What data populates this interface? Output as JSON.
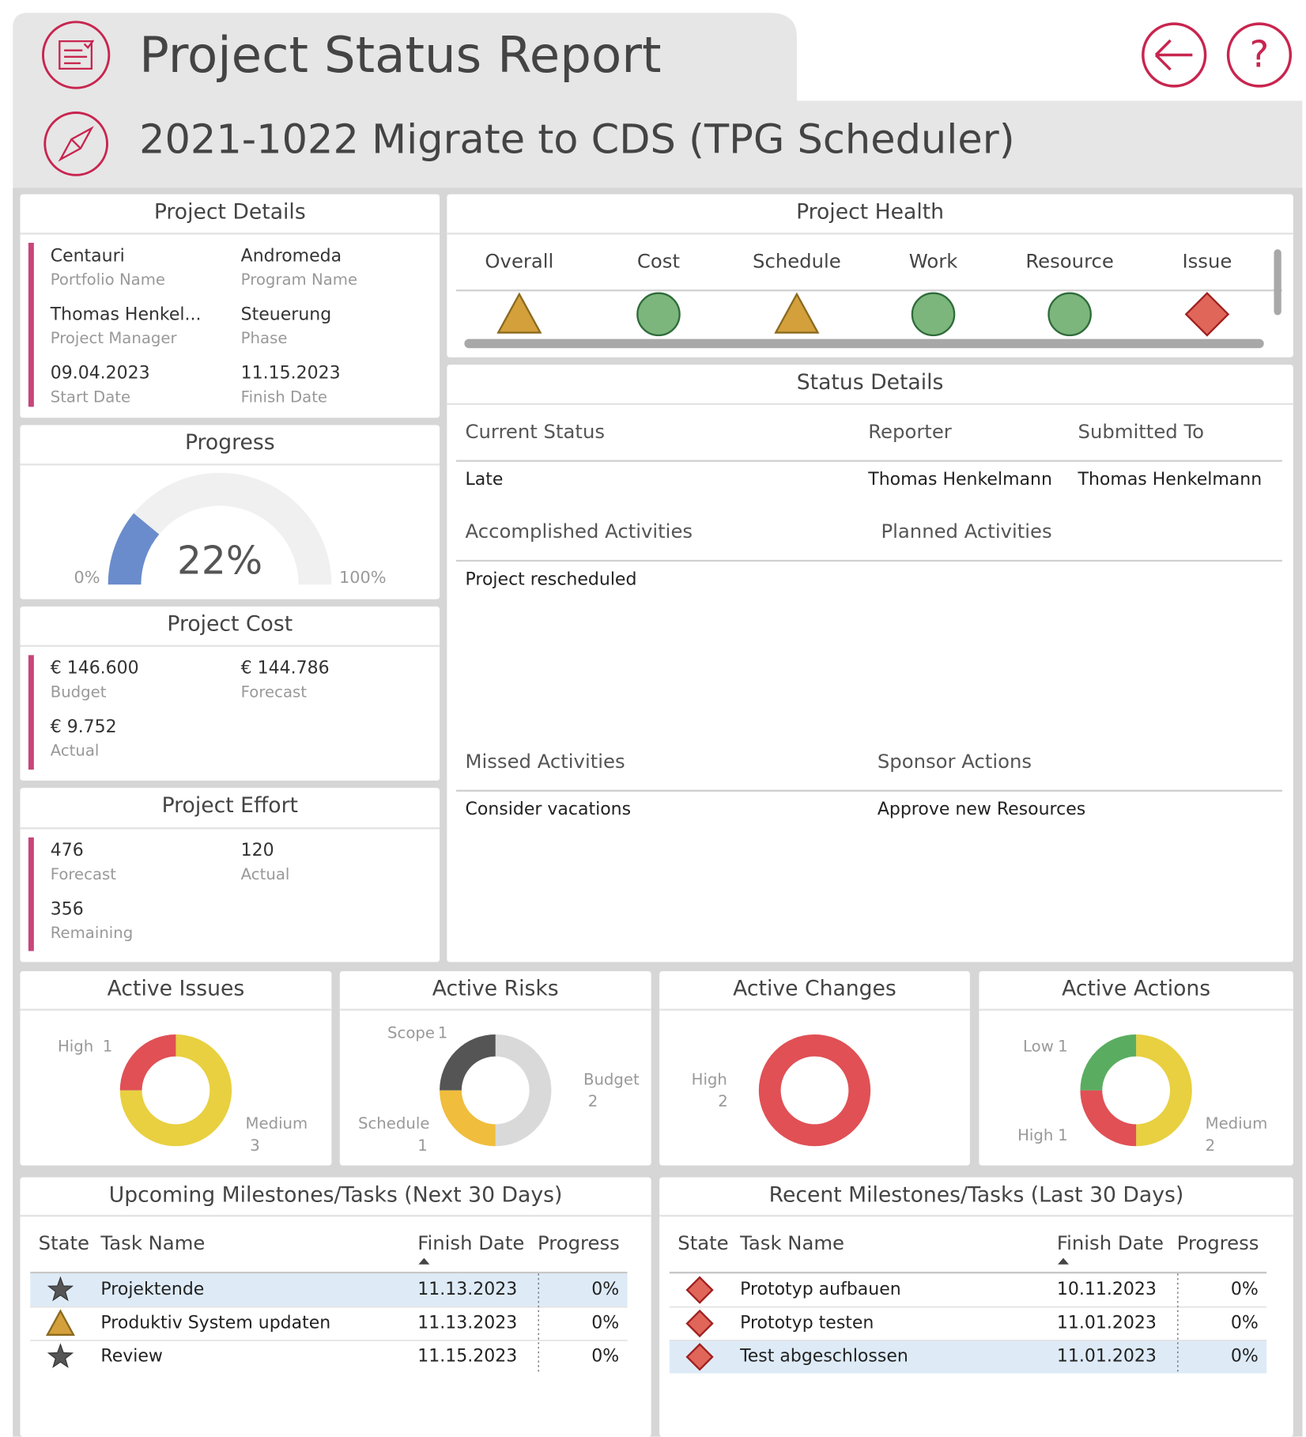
{
  "header": {
    "title": "Project Status Report",
    "project": "2021-1022 Migrate to CDS (TPG Scheduler)"
  },
  "project_details": {
    "title": "Project Details",
    "fields": [
      {
        "value": "Centauri",
        "label": "Portfolio Name"
      },
      {
        "value": "Andromeda",
        "label": "Program Name"
      },
      {
        "value": "Thomas Henkel...",
        "label": "Project Manager"
      },
      {
        "value": "Steuerung",
        "label": "Phase"
      },
      {
        "value": "09.04.2023",
        "label": "Start Date"
      },
      {
        "value": "11.15.2023",
        "label": "Finish Date"
      }
    ]
  },
  "progress": {
    "title": "Progress",
    "value": 22,
    "value_label": "22%",
    "ticks": [
      {
        "value": 0,
        "label": "0%"
      },
      {
        "value": 100,
        "label": "100%"
      }
    ],
    "color": "#6a8ccc"
  },
  "project_cost": {
    "title": "Project Cost",
    "fields": [
      {
        "value": "€ 146.600",
        "label": "Budget"
      },
      {
        "value": "€ 144.786",
        "label": "Forecast"
      },
      {
        "value": "€ 9.752",
        "label": "Actual"
      }
    ]
  },
  "project_effort": {
    "title": "Project Effort",
    "fields": [
      {
        "value": 476,
        "label": "Forecast"
      },
      {
        "value": 120,
        "label": "Actual"
      },
      {
        "value": 356,
        "label": "Remaining"
      }
    ]
  },
  "project_health": {
    "title": "Project Health",
    "indicators": [
      {
        "label": "Overall",
        "shape": "triangle"
      },
      {
        "label": "Cost",
        "shape": "circle"
      },
      {
        "label": "Schedule",
        "shape": "triangle"
      },
      {
        "label": "Work",
        "shape": "circle"
      },
      {
        "label": "Resource",
        "shape": "circle"
      },
      {
        "label": "Issue",
        "shape": "diamond"
      }
    ]
  },
  "status_details": {
    "title": "Status Details",
    "sections": [
      {
        "columns": [
          {
            "heading": "Current Status",
            "text": "Late"
          },
          {
            "heading": "Reporter",
            "text": "Thomas Henkelmann"
          },
          {
            "heading": "Submitted To",
            "text": "Thomas Henkelmann"
          }
        ]
      },
      {
        "columns": [
          {
            "heading": "Accomplished Activities",
            "text": "Project rescheduled"
          },
          {
            "heading": "Planned Activities"
          }
        ]
      },
      {
        "columns": [
          {
            "heading": "Missed Activities",
            "text": "Consider vacations"
          },
          {
            "heading": "Sponsor Actions",
            "text": "Approve new Resources"
          }
        ]
      }
    ]
  },
  "active_items": [
    {
      "title": "Active Issues",
      "segments": [
        {
          "name": "Medium",
          "value": 3,
          "color": "#e8d040"
        },
        {
          "name": "High",
          "value": 1,
          "color": "#e05055"
        }
      ]
    },
    {
      "title": "Active Risks",
      "segments": [
        {
          "name": "Budget",
          "value": 2,
          "color": "#d9d9d9"
        },
        {
          "name": "Schedule",
          "value": 1,
          "color": "#f0bd3c"
        },
        {
          "name": "Scope",
          "value": 1,
          "color": "#555555"
        }
      ]
    },
    {
      "title": "Active Changes",
      "segments": [
        {
          "name": "High",
          "value": 2,
          "color": "#e05055"
        }
      ]
    },
    {
      "title": "Active Actions",
      "segments": [
        {
          "name": "Medium",
          "value": 2,
          "color": "#e8d040"
        },
        {
          "name": "High",
          "value": 1,
          "color": "#e05055"
        },
        {
          "name": "Low",
          "value": 1,
          "color": "#5aad60"
        }
      ]
    }
  ],
  "milestones": [
    {
      "title": "Upcoming Milestones/Tasks (Next 30 Days)",
      "columns": [
        "State",
        "Task Name",
        "Finish Date",
        "Progress"
      ],
      "rows": [
        {
          "state": "star",
          "task": "Projektende",
          "finish": "11.13.2023",
          "progress": "0%"
        },
        {
          "state": "triangle",
          "task": "Produktiv System updaten",
          "finish": "11.13.2023",
          "progress": "0%"
        },
        {
          "state": "star",
          "task": "Review",
          "finish": "11.15.2023",
          "progress": "0%"
        }
      ]
    },
    {
      "title": "Recent Milestones/Tasks (Last 30 Days)",
      "columns": [
        "State",
        "Task Name",
        "Finish Date",
        "Progress"
      ],
      "rows": [
        {
          "state": "diamond",
          "task": "Prototyp aufbauen",
          "finish": "10.11.2023",
          "progress": "0%"
        },
        {
          "state": "diamond",
          "task": "Prototyp testen",
          "finish": "11.01.2023",
          "progress": "0%"
        },
        {
          "state": "diamond",
          "task": "Test abgeschlossen",
          "finish": "11.01.2023",
          "progress": "0%"
        }
      ]
    }
  ]
}
